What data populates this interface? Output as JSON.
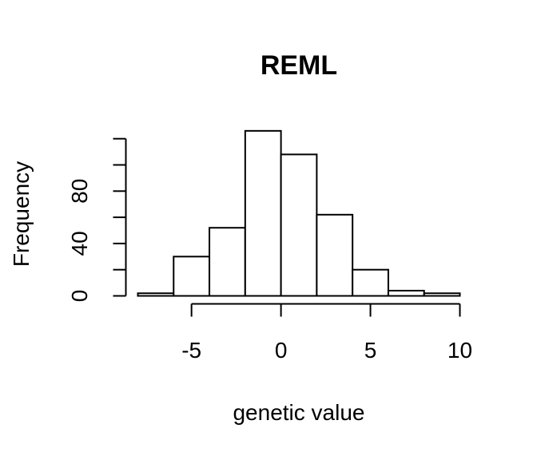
{
  "chart_data": {
    "type": "bar",
    "title": "REML",
    "xlabel": "genetic value",
    "ylabel": "Frequency",
    "bin_edges": [
      -8,
      -6,
      -4,
      -2,
      0,
      2,
      4,
      6,
      8,
      10
    ],
    "values": [
      2,
      30,
      52,
      126,
      108,
      62,
      20,
      4,
      2
    ],
    "xlim": [
      -8,
      10
    ],
    "ylim": [
      0,
      120
    ],
    "x_ticks": [
      -5,
      0,
      5,
      10
    ],
    "x_tick_labels": [
      "-5",
      "0",
      "5",
      "10"
    ],
    "y_ticks": [
      0,
      20,
      40,
      60,
      80,
      100,
      120
    ],
    "y_tick_labels": [
      "0",
      "",
      "40",
      "",
      "80",
      "",
      ""
    ],
    "grid": false,
    "legend": "none"
  }
}
